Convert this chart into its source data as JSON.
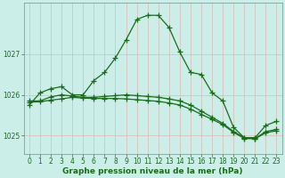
{
  "xlabel": "Graphe pression niveau de la mer (hPa)",
  "bg_color": "#cceee8",
  "grid_color": "#c8d8d0",
  "line_color": "#1a6b1a",
  "marker": "+",
  "markersize": 4,
  "linewidth": 0.9,
  "hours": [
    0,
    1,
    2,
    3,
    4,
    5,
    6,
    7,
    8,
    9,
    10,
    11,
    12,
    13,
    14,
    15,
    16,
    17,
    18,
    19,
    20,
    21,
    22,
    23
  ],
  "line1": [
    1025.75,
    1026.05,
    1026.15,
    1026.2,
    1026.0,
    1026.0,
    1026.35,
    1026.55,
    1026.9,
    1027.35,
    1027.85,
    1027.95,
    1027.95,
    1027.65,
    1027.05,
    1026.55,
    1026.5,
    1026.05,
    1025.85,
    1025.2,
    1024.95,
    1024.95,
    1025.25,
    1025.35
  ],
  "line2": [
    1025.85,
    1025.85,
    1025.95,
    1026.0,
    1025.97,
    1025.94,
    1025.94,
    1025.96,
    1025.98,
    1026.0,
    1025.98,
    1025.96,
    1025.94,
    1025.9,
    1025.85,
    1025.75,
    1025.6,
    1025.45,
    1025.3,
    1025.1,
    1024.95,
    1024.93,
    1025.1,
    1025.15
  ],
  "line3": [
    1025.82,
    1025.83,
    1025.87,
    1025.9,
    1025.94,
    1025.92,
    1025.91,
    1025.91,
    1025.91,
    1025.9,
    1025.88,
    1025.86,
    1025.84,
    1025.8,
    1025.75,
    1025.65,
    1025.52,
    1025.4,
    1025.27,
    1025.08,
    1024.93,
    1024.92,
    1025.07,
    1025.12
  ],
  "ylim": [
    1024.55,
    1028.25
  ],
  "yticks": [
    1025,
    1026,
    1027
  ],
  "xticks": [
    0,
    1,
    2,
    3,
    4,
    5,
    6,
    7,
    8,
    9,
    10,
    11,
    12,
    13,
    14,
    15,
    16,
    17,
    18,
    19,
    20,
    21,
    22,
    23
  ],
  "tick_fontsize": 5.5,
  "xlabel_fontsize": 6.5
}
